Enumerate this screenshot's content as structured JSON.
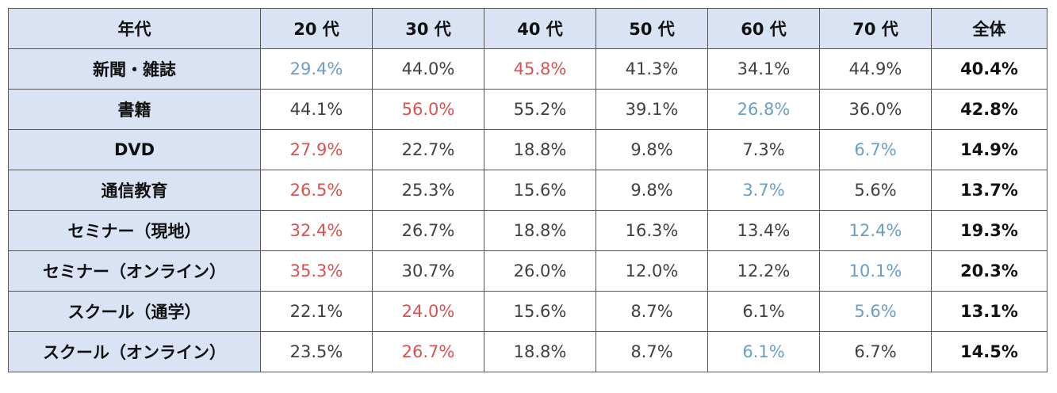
{
  "table": {
    "header": [
      "年代",
      "20 代",
      "30 代",
      "40 代",
      "50 代",
      "60 代",
      "70 代",
      "全体"
    ],
    "rows": [
      [
        "新聞・雑誌",
        "29.4%",
        "44.0%",
        "45.8%",
        "41.3%",
        "34.1%",
        "44.9%",
        "40.4%"
      ],
      [
        "書籍",
        "44.1%",
        "56.0%",
        "55.2%",
        "39.1%",
        "26.8%",
        "36.0%",
        "42.8%"
      ],
      [
        "DVD",
        "27.9%",
        "22.7%",
        "18.8%",
        "9.8%",
        "7.3%",
        "6.7%",
        "14.9%"
      ],
      [
        "通信教育",
        "26.5%",
        "25.3%",
        "15.6%",
        "9.8%",
        "3.7%",
        "5.6%",
        "13.7%"
      ],
      [
        "セミナー（現地）",
        "32.4%",
        "26.7%",
        "18.8%",
        "16.3%",
        "13.4%",
        "12.4%",
        "19.3%"
      ],
      [
        "セミナー（オンライン）",
        "35.3%",
        "30.7%",
        "26.0%",
        "12.0%",
        "12.2%",
        "10.1%",
        "20.3%"
      ],
      [
        "スクール（通学）",
        "22.1%",
        "24.0%",
        "15.6%",
        "8.7%",
        "6.1%",
        "5.6%",
        "13.1%"
      ],
      [
        "スクール（オンライン）",
        "23.5%",
        "26.7%",
        "18.8%",
        "8.7%",
        "6.1%",
        "6.7%",
        "14.5%"
      ]
    ],
    "cell_colors": [
      [
        "#6a9ec8",
        "#404040",
        "#d9534f",
        "#404040",
        "#404040",
        "#404040"
      ],
      [
        "#404040",
        "#d9534f",
        "#404040",
        "#404040",
        "#6a9ec8",
        "#404040"
      ],
      [
        "#d9534f",
        "#404040",
        "#404040",
        "#404040",
        "#404040",
        "#6a9ec8"
      ],
      [
        "#d9534f",
        "#404040",
        "#404040",
        "#404040",
        "#6a9ec8",
        "#404040"
      ],
      [
        "#d9534f",
        "#404040",
        "#404040",
        "#404040",
        "#404040",
        "#6a9ec8"
      ],
      [
        "#d9534f",
        "#404040",
        "#404040",
        "#404040",
        "#404040",
        "#6a9ec8"
      ],
      [
        "#404040",
        "#d9534f",
        "#404040",
        "#404040",
        "#404040",
        "#6a9ec8"
      ],
      [
        "#404040",
        "#d9534f",
        "#404040",
        "#404040",
        "#6a9ec8",
        "#404040"
      ]
    ]
  }
}
